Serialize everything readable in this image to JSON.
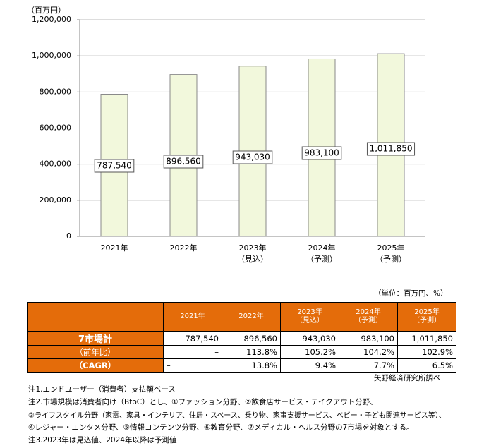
{
  "chart_data": {
    "type": "bar",
    "y_unit": "（百万円）",
    "categories": [
      "2021年",
      "2022年",
      "2023年",
      "2024年",
      "2025年"
    ],
    "category_notes": [
      null,
      null,
      "（見込）",
      "（予測）",
      "（予測）"
    ],
    "values": [
      787540,
      896560,
      943030,
      983100,
      1011850
    ],
    "value_labels": [
      "787,540",
      "896,560",
      "943,030",
      "983,100",
      "1,011,850"
    ],
    "color": "#f2f8dc",
    "ylim": [
      0,
      1200000
    ],
    "yticks": [
      0,
      {
        "value": 200000,
        "label": "200,000"
      },
      {
        "value": 400000,
        "label": "400,000"
      },
      {
        "value": 600000,
        "label": "600,000"
      },
      {
        "value": 800000,
        "label": "800,000"
      },
      {
        "value": 1000000,
        "label": "1,000,000"
      },
      {
        "value": 1200000,
        "label": "1,200,000"
      }
    ],
    "grid": true
  },
  "table": {
    "unit": "（単位：百万円、%）",
    "header": [
      [
        "2021年"
      ],
      [
        "2022年"
      ],
      [
        "2023年",
        "（見込）"
      ],
      [
        "2024年",
        "（予測）"
      ],
      [
        "2025年",
        "（予測）"
      ]
    ],
    "rows": [
      [
        "7市場計",
        "787,540",
        "896,560",
        "943,030",
        "983,100",
        "1,011,850"
      ],
      [
        "（前年比）",
        "–",
        "113.8%",
        "105.2%",
        "104.2%",
        "102.9%"
      ],
      [
        "（CAGR）",
        "–",
        "13.8%",
        "9.4%",
        "7.7%",
        "6.5%"
      ]
    ],
    "source": "矢野経済研究所調べ"
  },
  "notes": [
    "注1.エンドユーザー（消費者）支払額ベース",
    "注2.市場規模は消費者向け（BtoC）とし、①ファッション分野、②飲食店サービス・テイクアウト分野、",
    "③ライフスタイル分野（家電、家具・インテリア、住居・スペース、乗り物、家事支援サービス、ベビー・子ども関連サービス等）、",
    "④レジャー・エンタメ分野、⑤情報コンテンツ分野、⑥教育分野、⑦メディカル・ヘルス分野の7市場を対象とする。",
    "注3.2023年は見込値、2024年以降は予測値"
  ]
}
